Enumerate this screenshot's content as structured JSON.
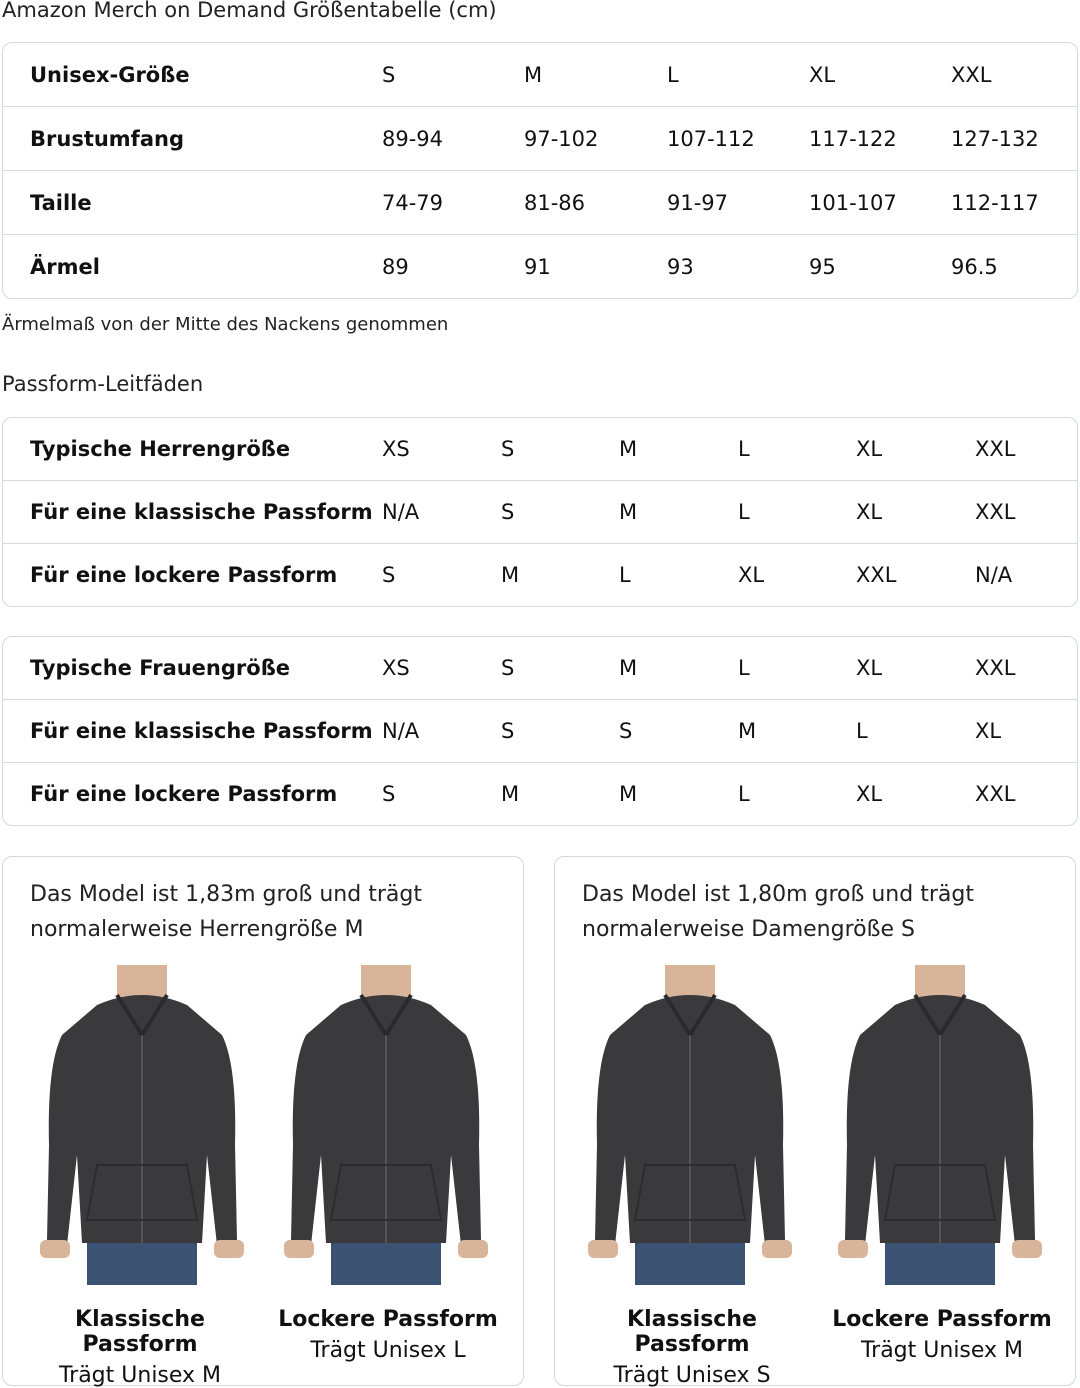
{
  "title": "Amazon Merch on Demand Größentabelle (cm)",
  "unisex_table": {
    "rows": [
      {
        "label": "Unisex-Größe",
        "values": [
          "S",
          "M",
          "L",
          "XL",
          "XXL"
        ]
      },
      {
        "label": "Brustumfang",
        "values": [
          "89-94",
          "97-102",
          "107-112",
          "117-122",
          "127-132"
        ]
      },
      {
        "label": "Taille",
        "values": [
          "74-79",
          "81-86",
          "91-97",
          "101-107",
          "112-117"
        ]
      },
      {
        "label": "Ärmel",
        "values": [
          "89",
          "91",
          "93",
          "95",
          "96.5"
        ]
      }
    ]
  },
  "note": "Ärmelmaß von der Mitte des Nackens genommen",
  "fit_guide_title": "Passform-Leitfäden",
  "men_table": {
    "rows": [
      {
        "label": "Typische Herrengröße",
        "values": [
          "XS",
          "S",
          "M",
          "L",
          "XL",
          "XXL"
        ]
      },
      {
        "label": "Für eine klassische Passform",
        "values": [
          "N/A",
          "S",
          "M",
          "L",
          "XL",
          "XXL"
        ]
      },
      {
        "label": "Für eine lockere Passform",
        "values": [
          "S",
          "M",
          "L",
          "XL",
          "XXL",
          "N/A"
        ]
      }
    ]
  },
  "women_table": {
    "rows": [
      {
        "label": "Typische Frauengröße",
        "values": [
          "XS",
          "S",
          "M",
          "L",
          "XL",
          "XXL"
        ]
      },
      {
        "label": "Für eine klassische Passform",
        "values": [
          "N/A",
          "S",
          "S",
          "M",
          "L",
          "XL"
        ]
      },
      {
        "label": "Für eine lockere Passform",
        "values": [
          "S",
          "M",
          "M",
          "L",
          "XL",
          "XXL"
        ]
      }
    ]
  },
  "model_cards": [
    {
      "description": "Das Model ist 1,83m groß und trägt normalerweise Herrengröße M",
      "photos": [
        {
          "fit": "Klassische Passform",
          "wears": "Trägt Unisex M"
        },
        {
          "fit": "Lockere Passform",
          "wears": "Trägt Unisex L"
        }
      ]
    },
    {
      "description": "Das Model ist 1,80m groß und trägt normalerweise Damengröße S",
      "photos": [
        {
          "fit": "Klassische Passform",
          "wears": "Trägt Unisex S"
        },
        {
          "fit": "Lockere Passform",
          "wears": "Trägt Unisex M"
        }
      ]
    }
  ],
  "colors": {
    "border": "#d5d9d9",
    "hoodie": "#3a3a3c",
    "jeans": "#3b5272"
  }
}
